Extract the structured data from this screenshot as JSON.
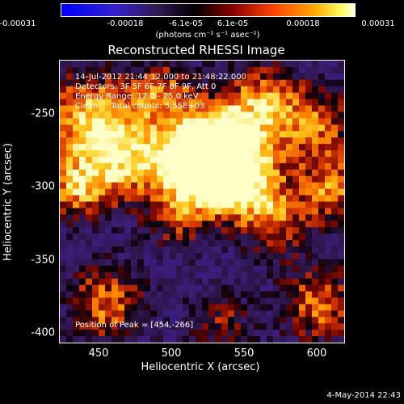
{
  "colorbar": {
    "ticks": [
      "-0.00031",
      "-0.00018",
      "-6.1e-05",
      "6.1e-05",
      "0.00018",
      "0.00031"
    ],
    "units": "(photons cm⁻² s⁻¹ asec⁻²)"
  },
  "title": "Reconstructed RHESSI Image",
  "info": {
    "time": "14-Jul-2012 21:44:12.000 to 21:48:22.000",
    "detectors": "Detectors: 3F 5F 6F 7F 8F 9F, Att 0",
    "energy": "Energy Range: 12.0 - 25.0 keV",
    "clean": "Clean     Total counts: 5.55E+03"
  },
  "peak": "Position of Peak = [454,-266]",
  "axes": {
    "xlabel": "Heliocentric X (arcsec)",
    "ylabel": "Heliocentric Y (arcsec)",
    "xticks": [
      "450",
      "500",
      "550",
      "600"
    ],
    "yticks": [
      "-250",
      "-300",
      "-350",
      "-400"
    ]
  },
  "timestamp": "4-May-2014 22:43",
  "colors": {
    "colormap": [
      "#0000ff",
      "#2a1a66",
      "#3a1a7a",
      "#000000",
      "#8b0000",
      "#cc3300",
      "#ff7700",
      "#ffcc00",
      "#ffffff"
    ]
  }
}
